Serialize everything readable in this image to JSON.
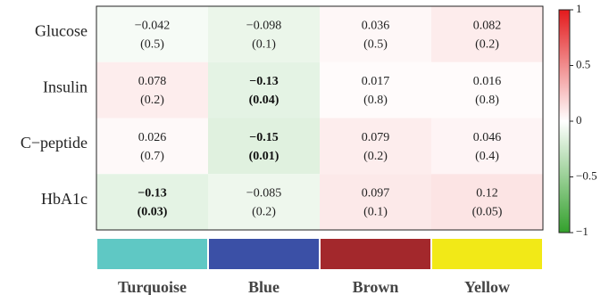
{
  "chart_data": {
    "type": "heatmap",
    "rows": [
      "Glucose",
      "Insulin",
      "C−peptide",
      "HbA1c"
    ],
    "columns": [
      "Turquoise",
      "Blue",
      "Brown",
      "Yellow"
    ],
    "column_colors": [
      "#5fc8c4",
      "#3b50a6",
      "#a3282c",
      "#f2e917"
    ],
    "values": [
      [
        -0.042,
        -0.098,
        0.036,
        0.082
      ],
      [
        0.078,
        -0.13,
        0.017,
        0.016
      ],
      [
        0.026,
        -0.15,
        0.079,
        0.046
      ],
      [
        -0.13,
        -0.085,
        0.097,
        0.12
      ]
    ],
    "value_labels": [
      [
        "−0.042",
        "−0.098",
        "0.036",
        "0.082"
      ],
      [
        "0.078",
        "−0.13",
        "0.017",
        "0.016"
      ],
      [
        "0.026",
        "−0.15",
        "0.079",
        "0.046"
      ],
      [
        "−0.13",
        "−0.085",
        "0.097",
        "0.12"
      ]
    ],
    "p_labels": [
      [
        "(0.5)",
        "(0.1)",
        "(0.5)",
        "(0.2)"
      ],
      [
        "(0.2)",
        "(0.04)",
        "(0.8)",
        "(0.8)"
      ],
      [
        "(0.7)",
        "(0.01)",
        "(0.2)",
        "(0.4)"
      ],
      [
        "(0.03)",
        "(0.2)",
        "(0.1)",
        "(0.05)"
      ]
    ],
    "significant": [
      [
        false,
        false,
        false,
        false
      ],
      [
        false,
        true,
        false,
        false
      ],
      [
        false,
        true,
        false,
        false
      ],
      [
        true,
        false,
        false,
        false
      ]
    ],
    "colorbar": {
      "range": [
        -1,
        1
      ],
      "ticks": [
        1,
        0.5,
        0,
        -0.5,
        -1
      ],
      "tick_labels": [
        "1",
        "0.5",
        "0",
        "−0.5",
        "−1"
      ],
      "colors": {
        "negative": "#33a02c",
        "zero": "#ffffff",
        "positive": "#e31a1c"
      }
    }
  }
}
